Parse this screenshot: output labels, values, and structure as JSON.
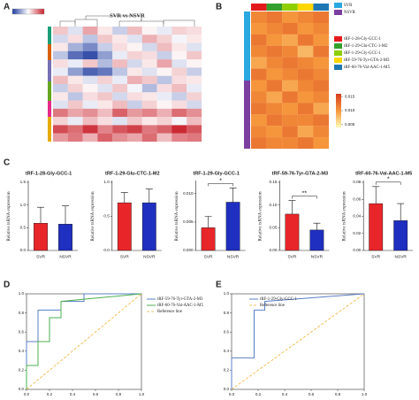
{
  "panels": {
    "A": {
      "label": "A",
      "title": "SVR vs NSVR",
      "clim": [
        -2,
        2
      ],
      "matrix": [
        [
          0.5,
          -0.3,
          0.8,
          0.2,
          -0.5,
          0.6,
          0.1,
          -0.2,
          0.4,
          0.3
        ],
        [
          -0.4,
          0.3,
          -0.6,
          0.5,
          0.2,
          -0.3,
          0.7,
          0.4,
          -0.1,
          0.2
        ],
        [
          0.2,
          -0.8,
          -1.2,
          -0.5,
          0.3,
          0.1,
          -0.4,
          0.6,
          0.2,
          -0.3
        ],
        [
          -0.6,
          -1.5,
          -1.8,
          -1.0,
          -0.2,
          0.4,
          0.3,
          -0.5,
          0.1,
          0.5
        ],
        [
          0.3,
          -0.2,
          0.5,
          -0.7,
          0.6,
          -0.4,
          0.2,
          0.8,
          -0.3,
          0.1
        ],
        [
          -0.2,
          -1.0,
          -1.6,
          -1.4,
          -0.6,
          0.2,
          -0.3,
          0.1,
          0.4,
          -0.5
        ],
        [
          0.6,
          0.2,
          -0.3,
          0.4,
          -0.2,
          0.7,
          0.5,
          -0.6,
          0.3,
          0.2
        ],
        [
          -0.5,
          0.4,
          0.1,
          -0.3,
          0.5,
          -0.1,
          -0.7,
          0.3,
          0.6,
          -0.2
        ],
        [
          0.2,
          -0.6,
          0.3,
          0.5,
          -0.4,
          0.3,
          0.2,
          -0.2,
          -0.5,
          0.4
        ],
        [
          -0.3,
          0.5,
          -0.2,
          0.2,
          0.6,
          -0.5,
          0.4,
          0.1,
          0.3,
          -0.4
        ],
        [
          1.2,
          0.8,
          1.0,
          0.6,
          1.4,
          0.9,
          1.1,
          0.7,
          1.3,
          1.0
        ],
        [
          0.4,
          -0.2,
          0.6,
          0.3,
          -0.3,
          0.5,
          0.2,
          0.4,
          -0.1,
          0.6
        ],
        [
          1.6,
          1.3,
          1.8,
          1.1,
          1.5,
          1.7,
          1.2,
          1.4,
          1.9,
          1.5
        ],
        [
          0.9,
          1.2,
          0.7,
          1.4,
          1.0,
          0.8,
          1.3,
          0.6,
          1.1,
          1.2
        ]
      ]
    },
    "B": {
      "label": "B",
      "clim": [
        0.004,
        0.016
      ],
      "legend": [
        {
          "name": "SVR",
          "color": "#29a8e0"
        },
        {
          "name": "NSVR",
          "color": "#7b3fa0"
        },
        {
          "name": "tRF-1-28-Gly-GCC-1",
          "color": "#e31a1c"
        },
        {
          "name": "tRF-1-29-Glu-CTC-1-M2",
          "color": "#33a02c"
        },
        {
          "name": "tRF-1-29-Gly-GCC-1",
          "color": "#8fce00"
        },
        {
          "name": "tRF-59-76-Tyr-GTA-2-M3",
          "color": "#ffd700"
        },
        {
          "name": "tRF-60-76-Val-AAC-1-M5",
          "color": "#1f78b4"
        }
      ],
      "colorbar_ticks": [
        {
          "value": 0.015,
          "label": "0.015"
        },
        {
          "value": 0.01,
          "label": "0.010"
        },
        {
          "value": 0.005,
          "label": "0.005"
        }
      ],
      "matrix": [
        [
          0.011,
          0.012,
          0.01,
          0.011,
          0.012
        ],
        [
          0.01,
          0.011,
          0.012,
          0.01,
          0.011
        ],
        [
          0.012,
          0.01,
          0.009,
          0.012,
          0.01
        ],
        [
          0.011,
          0.012,
          0.011,
          0.008,
          0.012
        ],
        [
          0.009,
          0.011,
          0.012,
          0.011,
          0.01
        ],
        [
          0.012,
          0.01,
          0.011,
          0.012,
          0.011
        ],
        [
          0.01,
          0.012,
          0.009,
          0.011,
          0.012
        ],
        [
          0.011,
          0.009,
          0.012,
          0.01,
          0.011
        ],
        [
          0.012,
          0.011,
          0.01,
          0.012,
          0.009
        ],
        [
          0.01,
          0.012,
          0.011,
          0.011,
          0.012
        ],
        [
          0.011,
          0.01,
          0.012,
          0.009,
          0.011
        ],
        [
          0.012,
          0.011,
          0.011,
          0.012,
          0.01
        ]
      ]
    },
    "C": {
      "label": "C",
      "charts": [
        {
          "title": "tRF-1-28-Gly-GCC-1",
          "ylabel": "Relative tsRNA expression",
          "categories": [
            "SVR",
            "NSVR"
          ],
          "colors": [
            "#e8262a",
            "#1f2fc0"
          ],
          "values": [
            0.6,
            0.58
          ],
          "errors": [
            0.35,
            0.4
          ],
          "ylim": [
            0,
            1.5
          ],
          "yticks": [
            {
              "value": 0,
              "label": "0.0"
            },
            0.5,
            {
              "value": 1,
              "label": "1.0"
            },
            1.5
          ]
        },
        {
          "title": "tRF-1-29-Glu-CTC-1-M2",
          "ylabel": "Relative tsRNA expression",
          "categories": [
            "SVR",
            "NSVR"
          ],
          "colors": [
            "#e8262a",
            "#1f2fc0"
          ],
          "values": [
            0.7,
            0.7
          ],
          "errors": [
            0.15,
            0.2
          ],
          "ylim": [
            0,
            1
          ],
          "yticks": [
            {
              "value": 0,
              "label": "0.0"
            },
            0.5,
            {
              "value": 1,
              "label": "1.0"
            }
          ]
        },
        {
          "title": "tRF-1-29-Gly-GCC-1",
          "ylabel": "Relative tsRNA expression",
          "categories": [
            "SVR",
            "NSVR"
          ],
          "colors": [
            "#e8262a",
            "#1f2fc0"
          ],
          "values": [
            0.004,
            0.0085
          ],
          "errors": [
            0.002,
            0.0025
          ],
          "ylim": [
            0,
            0.012
          ],
          "sig": "*",
          "yticks": [
            {
              "value": 0,
              "label": "0.000"
            },
            0.005,
            {
              "value": 0.01,
              "label": "0.010"
            }
          ]
        },
        {
          "title": "tRF-59-76-Tyr-GTA-2-M3",
          "ylabel": "Relative tsRNA expression",
          "categories": [
            "SVR",
            "NSVR"
          ],
          "colors": [
            "#e8262a",
            "#1f2fc0"
          ],
          "values": [
            0.08,
            0.045
          ],
          "errors": [
            0.03,
            0.015
          ],
          "ylim": [
            0,
            0.15
          ],
          "sig": "**",
          "yticks": [
            {
              "value": 0,
              "label": "0.00"
            },
            0.05,
            {
              "value": 0.1,
              "label": "0.10"
            },
            0.15
          ]
        },
        {
          "title": "tRF-60-76-Val-AAC-1-M5",
          "ylabel": "Relative tsRNA expression",
          "categories": [
            "SVR",
            "NSVR"
          ],
          "colors": [
            "#e8262a",
            "#1f2fc0"
          ],
          "values": [
            0.055,
            0.035
          ],
          "errors": [
            0.02,
            0.02
          ],
          "ylim": [
            0,
            0.08
          ],
          "sig": "*",
          "yticks": [
            {
              "value": 0,
              "label": "0.00"
            },
            0.02,
            0.04,
            0.06,
            0.08
          ]
        }
      ]
    },
    "D": {
      "label": "D",
      "reference": "Reference line",
      "xlim": [
        0,
        1
      ],
      "ylim": [
        0,
        1
      ],
      "xticks": [
        {
          "value": 0,
          "label": "0.0"
        },
        0.2,
        0.4,
        0.6,
        0.8,
        {
          "value": 1,
          "label": "1.0"
        }
      ],
      "yticks": [
        {
          "value": 0,
          "label": "0.0"
        },
        0.2,
        0.4,
        0.6,
        0.8,
        {
          "value": 1,
          "label": "1.0"
        }
      ],
      "series": [
        {
          "name": "tRF-59-76-Tyr-GTA-2-M3",
          "color": "#5b7fc7",
          "x": [
            0,
            0,
            0.1,
            0.1,
            0.3,
            0.3,
            0.5,
            0.5,
            1
          ],
          "y": [
            0,
            0.5,
            0.5,
            0.83,
            0.83,
            0.92,
            0.92,
            1,
            1
          ]
        },
        {
          "name": "tRF-60-76-Val-AAC-1-M5",
          "color": "#4caf50",
          "x": [
            0,
            0,
            0.1,
            0.1,
            0.2,
            0.2,
            0.3,
            0.3,
            1
          ],
          "y": [
            0,
            0.25,
            0.25,
            0.5,
            0.5,
            0.75,
            0.75,
            0.92,
            1
          ]
        }
      ]
    },
    "E": {
      "label": "E",
      "reference": "Reference line",
      "xlim": [
        0,
        1
      ],
      "ylim": [
        0,
        1
      ],
      "xticks": [
        {
          "value": 0,
          "label": "0.0"
        },
        0.2,
        0.4,
        0.6,
        0.8,
        {
          "value": 1,
          "label": "1.0"
        }
      ],
      "yticks": [
        {
          "value": 0,
          "label": "0.0"
        },
        0.2,
        0.4,
        0.6,
        0.8,
        {
          "value": 1,
          "label": "1.0"
        }
      ],
      "series": [
        {
          "name": "tRF-1-29-Gly-GCC-1",
          "color": "#5b7fc7",
          "x": [
            0,
            0,
            0.17,
            0.17,
            0.25,
            0.25,
            1
          ],
          "y": [
            0,
            0.33,
            0.33,
            0.83,
            0.83,
            0.92,
            1
          ]
        }
      ]
    }
  }
}
